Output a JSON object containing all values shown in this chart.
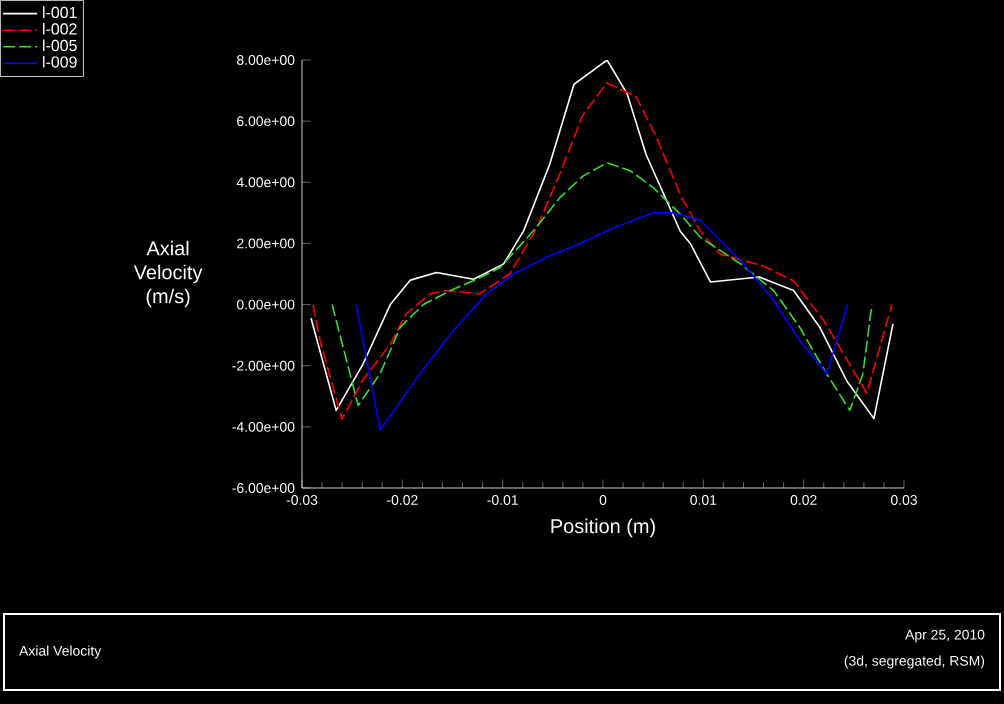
{
  "chart_data": {
    "type": "line",
    "title": "Axial Velocity",
    "xlabel": "Position (m)",
    "ylabel": "Axial Velocity (m/s)",
    "xlim": [
      -0.03,
      0.03
    ],
    "xticks": [
      -0.03,
      -0.02,
      -0.01,
      0,
      0.01,
      0.02,
      0.03
    ],
    "ylim": [
      -6,
      8
    ],
    "yticks": [
      {
        "value": -6,
        "label": "-6.00e+00"
      },
      {
        "value": -4,
        "label": "-4.00e+00"
      },
      {
        "value": -2,
        "label": "-2.00e+00"
      },
      {
        "value": 0,
        "label": "0.00e+00"
      },
      {
        "value": 2,
        "label": "2.00e+00"
      },
      {
        "value": 4,
        "label": "4.00e+00"
      },
      {
        "value": 6,
        "label": "6.00e+00"
      },
      {
        "value": 8,
        "label": "8.00e+00"
      }
    ],
    "grid": false,
    "legend": "top left",
    "marker": "none",
    "series": [
      {
        "name": "l-001",
        "color": "#ffffff",
        "line_style": "solid",
        "x": [
          -0.0291,
          -0.0266,
          -0.024,
          -0.0212,
          -0.0192,
          -0.0166,
          -0.0129,
          -0.0099,
          -0.0079,
          -0.0053,
          -0.0029,
          0.0004,
          0.0024,
          0.0043,
          0.0077,
          0.0087,
          0.0107,
          0.0156,
          0.019,
          0.0216,
          0.0243,
          0.027,
          0.0289
        ],
        "values": [
          -0.45,
          -3.46,
          -2.0,
          0.0,
          0.8,
          1.05,
          0.83,
          1.33,
          2.42,
          4.6,
          7.2,
          8.0,
          6.9,
          4.9,
          2.4,
          2.0,
          0.74,
          0.9,
          0.46,
          -0.74,
          -2.5,
          -3.73,
          -0.63
        ]
      },
      {
        "name": "l-002",
        "color": "#ff0000",
        "line_style": "dashed",
        "x": [
          -0.0289,
          -0.0282,
          -0.026,
          -0.024,
          -0.0212,
          -0.0196,
          -0.0172,
          -0.0156,
          -0.0123,
          -0.0093,
          -0.0066,
          -0.0043,
          -0.002,
          0.0004,
          0.0033,
          0.0053,
          0.0077,
          0.0097,
          0.0117,
          0.016,
          0.019,
          0.022,
          0.0263,
          0.0288
        ],
        "values": [
          0.0,
          -1.17,
          -3.75,
          -2.5,
          -1.3,
          -0.3,
          0.35,
          0.46,
          0.35,
          1.0,
          2.5,
          4.27,
          6.2,
          7.25,
          6.8,
          5.5,
          3.6,
          2.4,
          1.65,
          1.26,
          0.78,
          -0.52,
          -2.9,
          0.0
        ]
      },
      {
        "name": "l-005",
        "color": "#33dd33",
        "line_style": "dashed",
        "x": [
          -0.027,
          -0.0244,
          -0.0222,
          -0.0202,
          -0.0179,
          -0.0152,
          -0.0129,
          -0.0103,
          -0.0069,
          -0.0043,
          -0.002,
          0.0004,
          0.0027,
          0.005,
          0.0077,
          0.0097,
          0.0137,
          0.017,
          0.0196,
          0.0223,
          0.0246,
          0.0259,
          0.0268
        ],
        "values": [
          0.0,
          -3.3,
          -2.25,
          -0.74,
          0.0,
          0.46,
          0.78,
          1.2,
          2.42,
          3.5,
          4.2,
          4.64,
          4.38,
          3.83,
          2.96,
          2.2,
          1.33,
          0.46,
          -0.74,
          -2.27,
          -3.46,
          -2.27,
          0.0
        ]
      },
      {
        "name": "l-009",
        "color": "#0000ff",
        "line_style": "solid",
        "x": [
          -0.0246,
          -0.0222,
          -0.0182,
          -0.0149,
          -0.0116,
          -0.0089,
          -0.0056,
          -0.0023,
          0.001,
          0.005,
          0.007,
          0.0097,
          0.0137,
          0.017,
          0.0196,
          0.0223,
          0.0244
        ],
        "values": [
          0.0,
          -4.1,
          -2.25,
          -0.85,
          0.35,
          1.0,
          1.55,
          1.99,
          2.5,
          3.0,
          3.0,
          2.76,
          1.45,
          0.15,
          -1.16,
          -2.27,
          0.0
        ]
      }
    ],
    "annotations": [
      "Apr 25, 2010",
      "(3d, segregated, RSM)"
    ]
  }
}
